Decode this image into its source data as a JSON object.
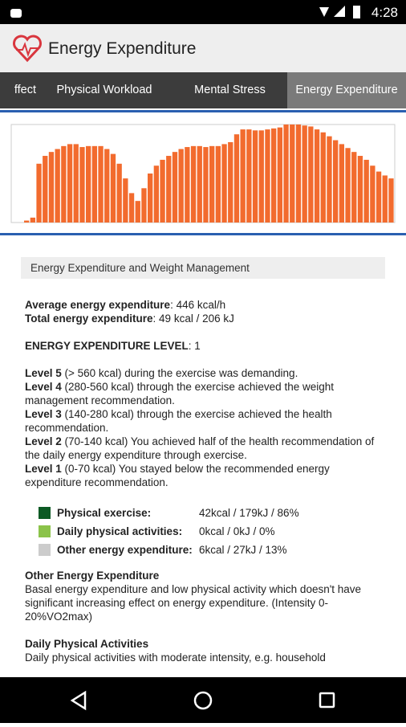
{
  "status_bar": {
    "time": "4:28"
  },
  "app_bar": {
    "title": "Energy Expenditure"
  },
  "tabs": [
    "ffect",
    "Physical Workload",
    "Mental Stress",
    "Energy Expenditure"
  ],
  "chart_data": {
    "type": "bar",
    "color": "#f26b2e",
    "ylim": [
      0,
      100
    ],
    "values": [
      2,
      5,
      60,
      68,
      72,
      75,
      78,
      80,
      80,
      77,
      78,
      78,
      78,
      75,
      70,
      60,
      45,
      30,
      22,
      35,
      50,
      58,
      64,
      68,
      72,
      75,
      77,
      78,
      78,
      77,
      78,
      78,
      80,
      82,
      90,
      95,
      95,
      94,
      94,
      95,
      96,
      97,
      100,
      100,
      100,
      99,
      98,
      95,
      92,
      88,
      84,
      80,
      76,
      72,
      68,
      64,
      58,
      52,
      48,
      45
    ]
  },
  "section": {
    "title": "Energy Expenditure and Weight Management"
  },
  "summary": [
    {
      "label": "Average energy expenditure",
      "text": ": 446 kcal/h"
    },
    {
      "label": "Total energy expenditure",
      "text": ": 49 kcal / 206 kJ"
    }
  ],
  "level": {
    "label": "ENERGY EXPENDITURE LEVEL",
    "text": ": 1"
  },
  "levels": [
    {
      "label": "Level 5",
      "text": " (> 560 kcal) during the exercise was demanding."
    },
    {
      "label": "Level 4",
      "text": " (280-560 kcal) through the exercise achieved the weight management recommendation."
    },
    {
      "label": "Level 3",
      "text": " (140-280 kcal) through the exercise achieved the health recommendation."
    },
    {
      "label": "Level 2",
      "text": " (70-140 kcal) You achieved half of the health recommendation of the daily energy expenditure through exercise."
    },
    {
      "label": "Level 1",
      "text": " (0-70 kcal) You stayed below the recommended energy expenditure recommendation."
    }
  ],
  "legend": [
    {
      "name": "Physical exercise:",
      "value": "42kcal / 179kJ / 86%",
      "color": "#0c5a24"
    },
    {
      "name": "Daily physical activities:",
      "value": "0kcal / 0kJ / 0%",
      "color": "#8bc34a"
    },
    {
      "name": "Other energy expenditure:",
      "value": "6kcal / 27kJ / 13%",
      "color": "#cccccc"
    }
  ],
  "descriptions": [
    {
      "title": "Other Energy Expenditure",
      "text": "Basal energy expenditure and low physical activity which doesn't have significant increasing effect on energy expenditure. (Intensity 0-20%VO2max)"
    },
    {
      "title": "Daily Physical Activities",
      "text": "Daily physical activities with moderate intensity, e.g. household"
    }
  ]
}
